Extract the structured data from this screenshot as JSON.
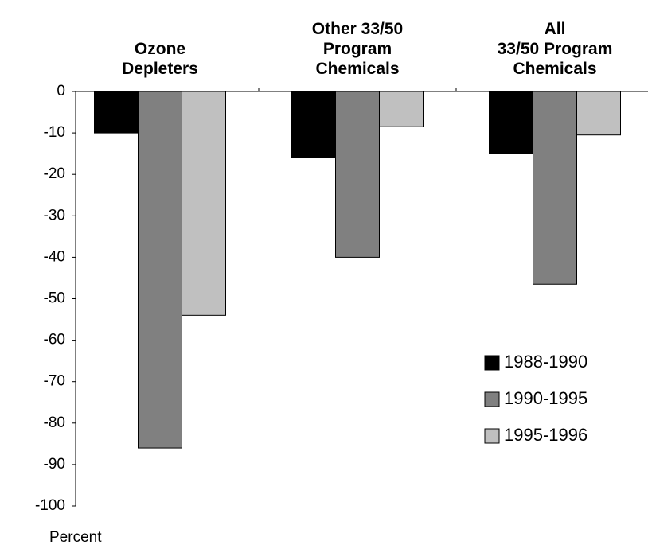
{
  "chart_data": {
    "type": "bar",
    "categories": [
      "Ozone\nDepleters",
      "Other 33/50\nProgram\nChemicals",
      "All\n33/50 Program\nChemicals"
    ],
    "series": [
      {
        "name": "1988-1990",
        "color": "#000000",
        "values": [
          -10,
          -16,
          -15
        ]
      },
      {
        "name": "1990-1995",
        "color": "#808080",
        "values": [
          -86,
          -40,
          -46.5
        ]
      },
      {
        "name": "1995-1996",
        "color": "#c0c0c0",
        "values": [
          -54,
          -8.5,
          -10.5
        ]
      }
    ],
    "ylim": [
      -100,
      0
    ],
    "yticks": [
      0,
      -10,
      -20,
      -30,
      -40,
      -50,
      -60,
      -70,
      -80,
      -90,
      -100
    ],
    "y_label": "Percent",
    "legend": "lower right"
  }
}
